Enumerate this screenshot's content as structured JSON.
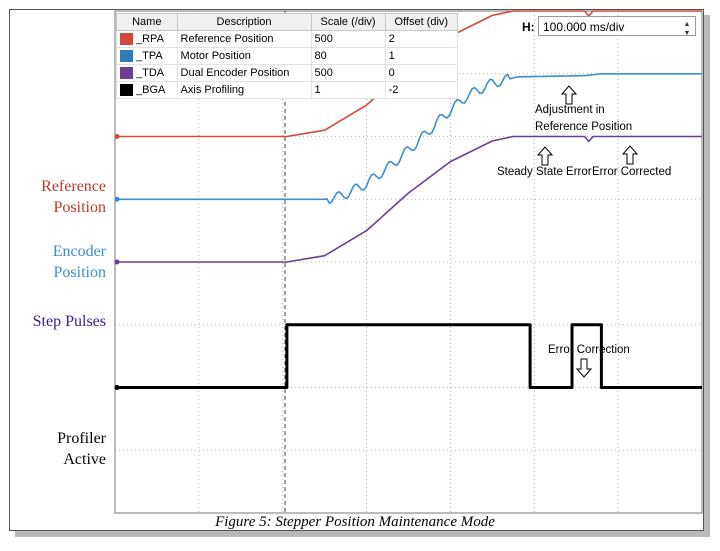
{
  "caption": "Figure 5: Stepper Position Maintenance Mode",
  "legend": {
    "headers": [
      "Name",
      "Description",
      "Scale (/div)",
      "Offset (div)"
    ],
    "rows": [
      {
        "name": "_RPA",
        "description": "Reference Position",
        "scale": "500",
        "offset": "2",
        "color": "#d04a3c"
      },
      {
        "name": "_TPA",
        "description": "Motor Position",
        "scale": "80",
        "offset": "1",
        "color": "#2f7ab8"
      },
      {
        "name": "_TDA",
        "description": "Dual Encoder Position",
        "scale": "500",
        "offset": "0",
        "color": "#6b3f96"
      },
      {
        "name": "_BGA",
        "description": "Axis Profiling",
        "scale": "1",
        "offset": "-2",
        "color": "#000000"
      }
    ]
  },
  "timebase": {
    "label": "H:",
    "value": "100.000 ms/div"
  },
  "side_labels": {
    "reference_line1": "Reference",
    "reference_line2": "Position",
    "encoder_line1": "Encoder",
    "encoder_line2": "Position",
    "step": "Step Pulses",
    "profiler_line1": "Profiler",
    "profiler_line2": "Active"
  },
  "annotations": {
    "adjust_line1": "Adjustment in",
    "adjust_line2": "Reference Position",
    "steady": "Steady State Error",
    "error_corrected": "Error Corrected",
    "error_correction": "Error Correction"
  },
  "chart_data": {
    "type": "line",
    "x_unit": "ms",
    "xlim": [
      0,
      700
    ],
    "ylim": [
      -4,
      4
    ],
    "grid": true,
    "series": [
      {
        "name": "_RPA",
        "color": "#d04a3c",
        "points": [
          [
            0,
            2.0
          ],
          [
            205,
            2.0
          ],
          [
            250,
            2.1
          ],
          [
            300,
            2.5
          ],
          [
            350,
            3.1
          ],
          [
            400,
            3.6
          ],
          [
            450,
            3.93
          ],
          [
            475,
            4.0
          ],
          [
            560,
            4.0
          ],
          [
            565,
            3.92
          ],
          [
            570,
            4.0
          ],
          [
            700,
            4.0
          ]
        ]
      },
      {
        "name": "_TPA",
        "color": "#3a8fd0",
        "points": [
          [
            0,
            1.0
          ],
          [
            250,
            1.0
          ],
          [
            270,
            1.05
          ],
          [
            300,
            1.25
          ],
          [
            330,
            1.55
          ],
          [
            360,
            1.9
          ],
          [
            390,
            2.3
          ],
          [
            420,
            2.65
          ],
          [
            450,
            2.85
          ],
          [
            480,
            2.95
          ],
          [
            560,
            2.97
          ],
          [
            580,
            3.0
          ],
          [
            700,
            3.0
          ]
        ]
      },
      {
        "name": "_TDA",
        "color": "#6b3f96",
        "points": [
          [
            0,
            0.0
          ],
          [
            205,
            0.0
          ],
          [
            250,
            0.1
          ],
          [
            300,
            0.5
          ],
          [
            350,
            1.1
          ],
          [
            400,
            1.6
          ],
          [
            450,
            1.93
          ],
          [
            475,
            2.0
          ],
          [
            560,
            2.0
          ],
          [
            565,
            1.92
          ],
          [
            570,
            2.0
          ],
          [
            700,
            2.0
          ]
        ]
      },
      {
        "name": "_BGA",
        "color": "#000000",
        "points": [
          [
            0,
            -2
          ],
          [
            205,
            -2
          ],
          [
            205,
            -1
          ],
          [
            495,
            -1
          ],
          [
            495,
            -2
          ],
          [
            545,
            -2
          ],
          [
            545,
            -1
          ],
          [
            580,
            -1
          ],
          [
            580,
            -2
          ],
          [
            700,
            -2
          ]
        ]
      }
    ]
  }
}
